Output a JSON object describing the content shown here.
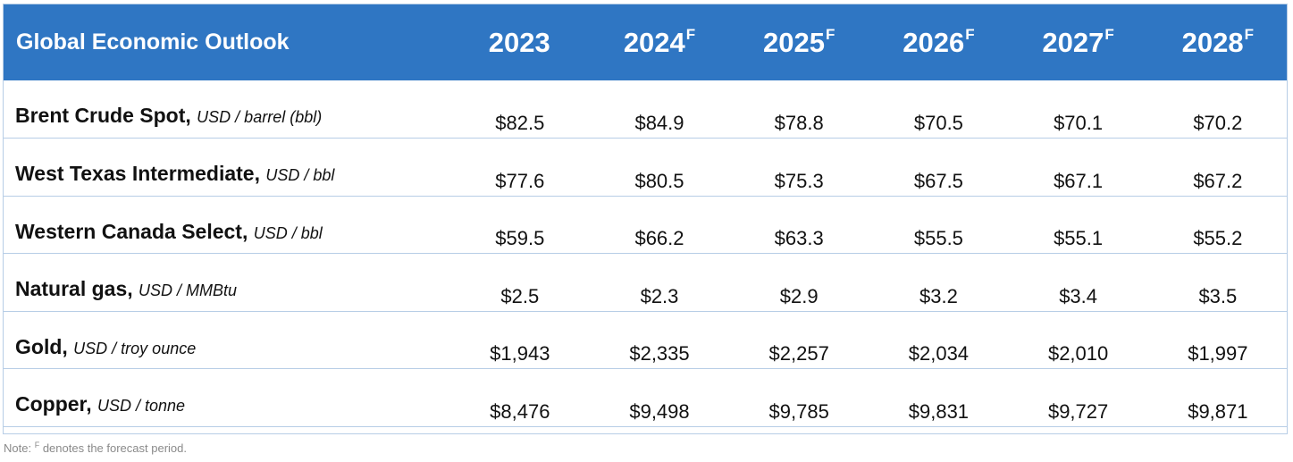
{
  "header": {
    "title": "Global Economic Outlook",
    "years": [
      {
        "year": "2023",
        "mark": ""
      },
      {
        "year": "2024",
        "mark": "F"
      },
      {
        "year": "2025",
        "mark": "F"
      },
      {
        "year": "2026",
        "mark": "F"
      },
      {
        "year": "2027",
        "mark": "F"
      },
      {
        "year": "2028",
        "mark": "F"
      }
    ]
  },
  "rows": [
    {
      "label": "Brent Crude Spot,",
      "unit": "USD / barrel (bbl)",
      "values": [
        "$82.5",
        "$84.9",
        "$78.8",
        "$70.5",
        "$70.1",
        "$70.2"
      ]
    },
    {
      "label": "West Texas Intermediate,",
      "unit": "USD / bbl",
      "values": [
        "$77.6",
        "$80.5",
        "$75.3",
        "$67.5",
        "$67.1",
        "$67.2"
      ]
    },
    {
      "label": "Western Canada Select,",
      "unit": "USD / bbl",
      "values": [
        "$59.5",
        "$66.2",
        "$63.3",
        "$55.5",
        "$55.1",
        "$55.2"
      ]
    },
    {
      "label": "Natural gas,",
      "unit": "USD / MMBtu",
      "values": [
        "$2.5",
        "$2.3",
        "$2.9",
        "$3.2",
        "$3.4",
        "$3.5"
      ]
    },
    {
      "label": "Gold,",
      "unit": "USD / troy ounce",
      "values": [
        "$1,943",
        "$2,335",
        "$2,257",
        "$2,034",
        "$2,010",
        "$1,997"
      ]
    },
    {
      "label": "Copper,",
      "unit": "USD / tonne",
      "values": [
        "$8,476",
        "$9,498",
        "$9,785",
        "$9,831",
        "$9,727",
        "$9,871"
      ]
    }
  ],
  "note": {
    "prefix": "Note:",
    "mark": "F",
    "text": "denotes the forecast period."
  },
  "colors": {
    "header_bg": "#2F76C3",
    "row_divider": "#B7CDE6",
    "note_text": "#8a8a8a"
  }
}
